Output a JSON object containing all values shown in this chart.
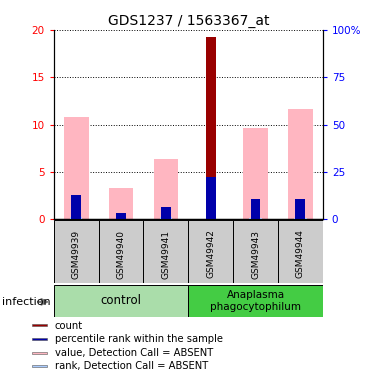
{
  "title": "GDS1237 / 1563367_at",
  "samples": [
    "GSM49939",
    "GSM49940",
    "GSM49941",
    "GSM49942",
    "GSM49943",
    "GSM49944"
  ],
  "ylim_left": [
    0,
    20
  ],
  "ylim_right": [
    0,
    100
  ],
  "yticks_left": [
    0,
    5,
    10,
    15,
    20
  ],
  "ytick_labels_left": [
    "0",
    "5",
    "10",
    "15",
    "20"
  ],
  "yticks_right": [
    0,
    25,
    50,
    75,
    100
  ],
  "ytick_labels_right": [
    "0",
    "25",
    "50",
    "75",
    "100%"
  ],
  "red_bars": [
    0,
    0,
    0,
    19.3,
    0,
    0
  ],
  "pink_bars": [
    10.8,
    3.3,
    6.4,
    0,
    9.7,
    11.7
  ],
  "blue_bars": [
    2.6,
    0.7,
    1.3,
    4.5,
    2.1,
    2.1
  ],
  "light_blue_bars": [
    0.3,
    0.0,
    0.3,
    0,
    0.1,
    0.1
  ],
  "red_color": "#990000",
  "pink_color": "#FFB6C1",
  "blue_color": "#0000AA",
  "light_blue_color": "#AACCFF",
  "ctrl_color": "#AADDAA",
  "ana_color": "#44CC44",
  "sample_bg": "#CCCCCC",
  "legend_labels": [
    "count",
    "percentile rank within the sample",
    "value, Detection Call = ABSENT",
    "rank, Detection Call = ABSENT"
  ],
  "legend_colors": [
    "#990000",
    "#0000AA",
    "#FFB6C1",
    "#AACCFF"
  ]
}
